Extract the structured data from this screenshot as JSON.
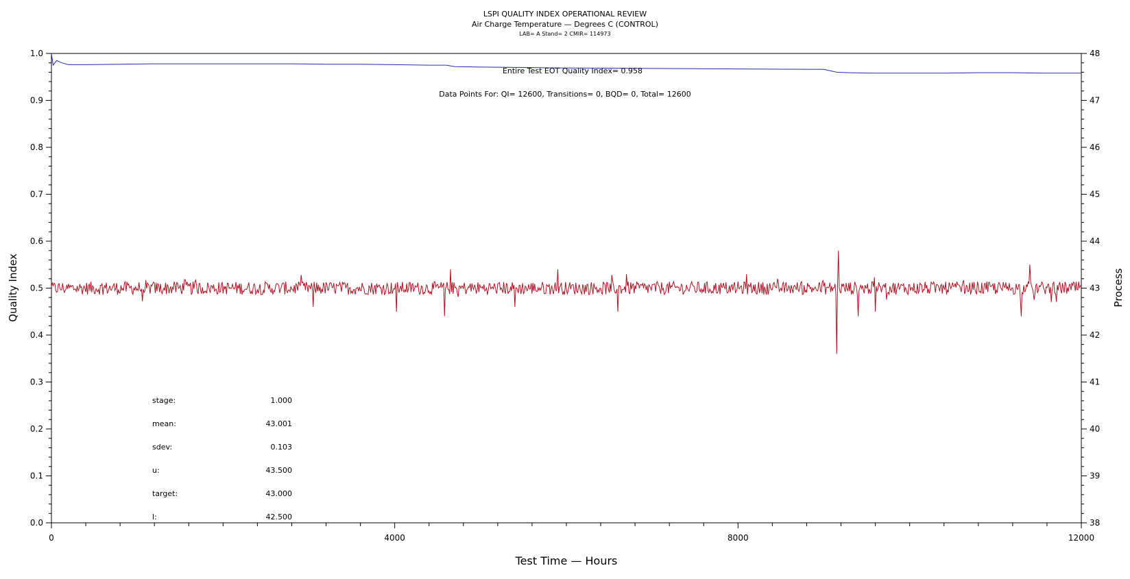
{
  "chart_data": {
    "type": "line",
    "title": "LSPI QUALITY INDEX OPERATIONAL REVIEW",
    "subtitle": "Air Charge Temperature — Degrees C (CONTROL)",
    "subtitle2": "LAB= A Stand= 2 CMIR= 114973",
    "xlabel": "Test Time — Hours",
    "ylabel_left": "Quality Index",
    "ylabel_right": "Process",
    "xlim": [
      0,
      12000
    ],
    "ylim_left": [
      0.0,
      1.0
    ],
    "ylim_right": [
      38,
      48
    ],
    "x_ticks": [
      "0",
      "4000",
      "8000",
      "12000"
    ],
    "y_ticks_left": [
      "0.0",
      "0.1",
      "0.2",
      "0.3",
      "0.4",
      "0.5",
      "0.6",
      "0.7",
      "0.8",
      "0.9",
      "1.0"
    ],
    "y_ticks_right": [
      "38",
      "39",
      "40",
      "41",
      "42",
      "43",
      "44",
      "45",
      "46",
      "47",
      "48"
    ],
    "annotations": {
      "eot": "Entire Test EOT Quality Index=   0.958",
      "points": "Data Points For: QI= 12600, Transitions=      0, BQD=      0, Total= 12600"
    },
    "stats": [
      {
        "label": "stage:",
        "value": "1.000"
      },
      {
        "label": "mean:",
        "value": "43.001"
      },
      {
        "label": "sdev:",
        "value": "0.103"
      },
      {
        "label": "u:",
        "value": "43.500"
      },
      {
        "label": "target:",
        "value": "43.000"
      },
      {
        "label": "l:",
        "value": "42.500"
      }
    ],
    "series": [
      {
        "color": "#2a2ab0",
        "axis": "left",
        "x": [
          0,
          20,
          60,
          120,
          200,
          400,
          800,
          1200,
          1600,
          2000,
          2400,
          2800,
          3200,
          3600,
          4000,
          4400,
          4600,
          4700,
          5000,
          6000,
          7000,
          8000,
          9000,
          9150,
          9300,
          9600,
          10000,
          10400,
          10800,
          11200,
          11600,
          12000
        ],
        "values": [
          1.0,
          0.975,
          0.985,
          0.98,
          0.976,
          0.976,
          0.977,
          0.978,
          0.978,
          0.978,
          0.978,
          0.978,
          0.977,
          0.977,
          0.976,
          0.975,
          0.975,
          0.972,
          0.971,
          0.969,
          0.968,
          0.967,
          0.966,
          0.96,
          0.959,
          0.958,
          0.958,
          0.958,
          0.959,
          0.959,
          0.958,
          0.958
        ]
      },
      {
        "color": "#b01020",
        "axis": "right",
        "baseline": 43.0,
        "noise_sdev": 0.1,
        "spikes": [
          {
            "x": 3050,
            "value": 42.6
          },
          {
            "x": 4020,
            "value": 42.5
          },
          {
            "x": 4580,
            "value": 42.4
          },
          {
            "x": 4650,
            "value": 43.4
          },
          {
            "x": 5400,
            "value": 42.6
          },
          {
            "x": 5900,
            "value": 43.4
          },
          {
            "x": 6600,
            "value": 42.5
          },
          {
            "x": 6700,
            "value": 43.3
          },
          {
            "x": 8100,
            "value": 43.3
          },
          {
            "x": 9150,
            "value": 41.6
          },
          {
            "x": 9170,
            "value": 43.8
          },
          {
            "x": 9400,
            "value": 42.4
          },
          {
            "x": 9600,
            "value": 42.5
          },
          {
            "x": 11300,
            "value": 42.4
          },
          {
            "x": 11400,
            "value": 43.5
          }
        ]
      }
    ]
  }
}
